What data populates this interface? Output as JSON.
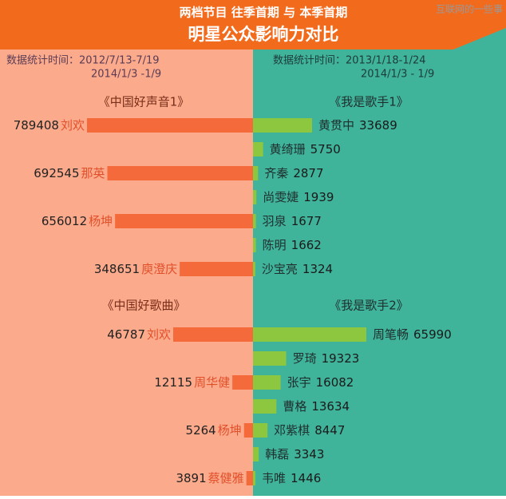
{
  "header": {
    "title": "两档节目 往季首期 与 本季首期",
    "subtitle": "明星公众影响力对比",
    "watermark": "互联网的一些事"
  },
  "left_period": [
    "数据统计时间：2012/7/13-7/19",
    "2014/1/3  -1/9"
  ],
  "right_period": [
    "数据统计时间：2013/1/18-1/24",
    "2014/1/3 - 1/9"
  ],
  "chart_data": [
    {
      "type": "bar",
      "title": "《中国好声音1》",
      "categories": [
        "刘欢",
        "那英",
        "杨坤",
        "庾澄庆"
      ],
      "values": [
        789408,
        692545,
        656012,
        348651
      ],
      "color": "#f46a3a"
    },
    {
      "type": "bar",
      "title": "《我是歌手1》",
      "categories": [
        "黄贯中",
        "黄绮珊",
        "齐秦",
        "尚雯婕",
        "羽泉",
        "陈明",
        "沙宝亮"
      ],
      "values": [
        33689,
        5750,
        2877,
        1939,
        1677,
        1662,
        1324
      ],
      "color": "#8dc63f"
    },
    {
      "type": "bar",
      "title": "《中国好歌曲》",
      "categories": [
        "刘欢",
        "周华健",
        "杨坤",
        "蔡健雅"
      ],
      "values": [
        46787,
        12115,
        5264,
        3891
      ],
      "color": "#f46a3a"
    },
    {
      "type": "bar",
      "title": "《我是歌手2》",
      "categories": [
        "周笔畅",
        "罗琦",
        "张宇",
        "曹格",
        "邓紫棋",
        "韩磊",
        "韦唯"
      ],
      "values": [
        65990,
        19323,
        16082,
        13634,
        8447,
        3343,
        1446
      ],
      "color": "#8dc63f"
    }
  ]
}
